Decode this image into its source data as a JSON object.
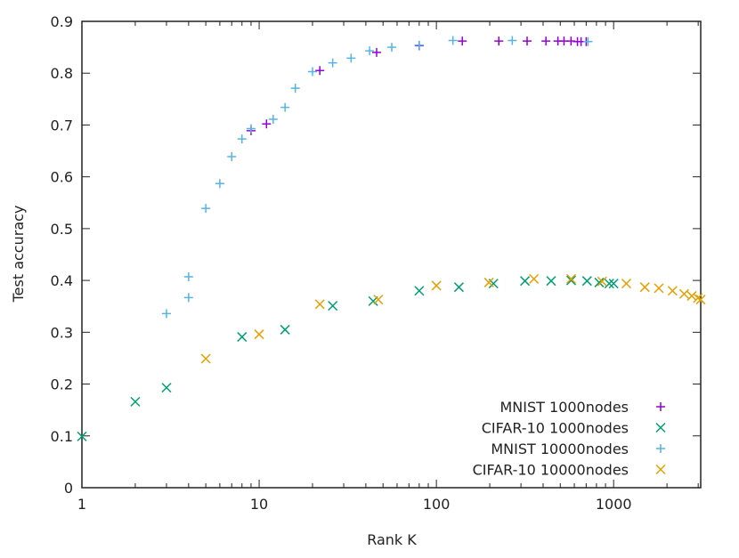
{
  "chart_data": {
    "type": "scatter",
    "title": "",
    "xlabel": "Rank K",
    "ylabel": "Test accuracy",
    "xscale": "log",
    "xlim": [
      1,
      3100
    ],
    "ylim": [
      0,
      0.9
    ],
    "xticks": [
      {
        "value": 1,
        "label": "1"
      },
      {
        "value": 10,
        "label": "10"
      },
      {
        "value": 100,
        "label": "100"
      },
      {
        "value": 1000,
        "label": "1000"
      }
    ],
    "yticks": [
      {
        "value": 0,
        "label": "0"
      },
      {
        "value": 0.1,
        "label": "0.1"
      },
      {
        "value": 0.2,
        "label": "0.2"
      },
      {
        "value": 0.3,
        "label": "0.3"
      },
      {
        "value": 0.4,
        "label": "0.4"
      },
      {
        "value": 0.5,
        "label": "0.5"
      },
      {
        "value": 0.6,
        "label": "0.6"
      },
      {
        "value": 0.7,
        "label": "0.7"
      },
      {
        "value": 0.8,
        "label": "0.8"
      },
      {
        "value": 0.9,
        "label": "0.9"
      }
    ],
    "grid": false,
    "legend_position": "bottom-right",
    "series": [
      {
        "name": "MNIST 1000nodes",
        "marker": "plus",
        "color": "#9400d3",
        "x": [
          9,
          11,
          22,
          46,
          80,
          140,
          225,
          325,
          415,
          485,
          525,
          575,
          625,
          655,
          700
        ],
        "y": [
          0.689,
          0.702,
          0.805,
          0.84,
          0.853,
          0.862,
          0.862,
          0.862,
          0.862,
          0.862,
          0.862,
          0.862,
          0.861,
          0.861,
          0.861
        ]
      },
      {
        "name": "CIFAR-10 1000nodes",
        "marker": "cross",
        "color": "#009e73",
        "x": [
          1,
          2,
          3,
          8,
          14,
          26,
          44,
          80,
          134,
          210,
          316,
          444,
          576,
          708,
          829,
          945,
          1000
        ],
        "y": [
          0.099,
          0.166,
          0.193,
          0.291,
          0.305,
          0.351,
          0.36,
          0.38,
          0.387,
          0.394,
          0.399,
          0.399,
          0.4,
          0.399,
          0.396,
          0.394,
          0.394
        ]
      },
      {
        "name": "MNIST 10000nodes",
        "marker": "plus",
        "color": "#56b4e9",
        "x": [
          3,
          4,
          4,
          5,
          6,
          7,
          8,
          9,
          12,
          14,
          16,
          20,
          26,
          33,
          42,
          56,
          80,
          124,
          268,
          717
        ],
        "y": [
          0.336,
          0.367,
          0.407,
          0.539,
          0.587,
          0.639,
          0.673,
          0.693,
          0.711,
          0.734,
          0.771,
          0.803,
          0.82,
          0.829,
          0.843,
          0.85,
          0.854,
          0.863,
          0.863,
          0.861
        ]
      },
      {
        "name": "CIFAR-10 10000nodes",
        "marker": "cross",
        "color": "#e69f00",
        "x": [
          5,
          10,
          22,
          47,
          100,
          198,
          355,
          576,
          861,
          1180,
          1500,
          1800,
          2150,
          2500,
          2760,
          2990,
          3100
        ],
        "y": [
          0.249,
          0.296,
          0.354,
          0.363,
          0.39,
          0.396,
          0.403,
          0.403,
          0.398,
          0.394,
          0.387,
          0.385,
          0.38,
          0.374,
          0.37,
          0.366,
          0.363
        ]
      }
    ]
  }
}
